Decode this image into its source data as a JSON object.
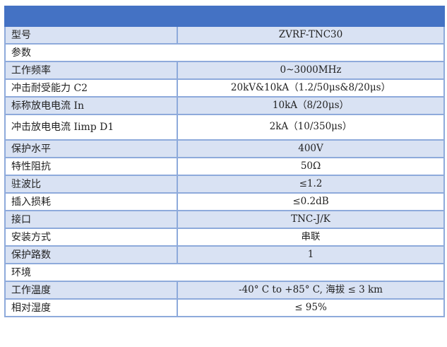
{
  "colors": {
    "header": "#4472c4",
    "row_shade": "#d9e2f3",
    "border": "#8eaadb"
  },
  "rows": [
    {
      "label": "型号",
      "value": "ZVRF-TNC30"
    },
    {
      "label": "参数",
      "section": true
    },
    {
      "label": "工作频率",
      "value": "0~3000MHz"
    },
    {
      "label": "冲击耐受能力 C2",
      "value": "20kV&10kA（1.2/50μs&8/20μs）"
    },
    {
      "label": "标称放电电流 In",
      "value": "10kA（8/20μs）"
    },
    {
      "label": "冲击放电电流 Iimp D1",
      "value": "2kA（10/350μs）"
    },
    {
      "label": "保护水平",
      "value": "400V"
    },
    {
      "label": "特性阻抗",
      "value": "50Ω"
    },
    {
      "label": "驻波比",
      "value": "≤1.2"
    },
    {
      "label": "插入损耗",
      "value": "≤0.2dB"
    },
    {
      "label": "接口",
      "value": "TNC-J/K"
    },
    {
      "label": "安装方式",
      "value": "串联"
    },
    {
      "label": "保护路数",
      "value": "1"
    },
    {
      "label": "环境",
      "section": true
    },
    {
      "label": "工作温度",
      "value": "-40° C to +85° C, 海拔 ≤ 3 km"
    },
    {
      "label": "相对湿度",
      "value": "≤ 95%"
    }
  ]
}
